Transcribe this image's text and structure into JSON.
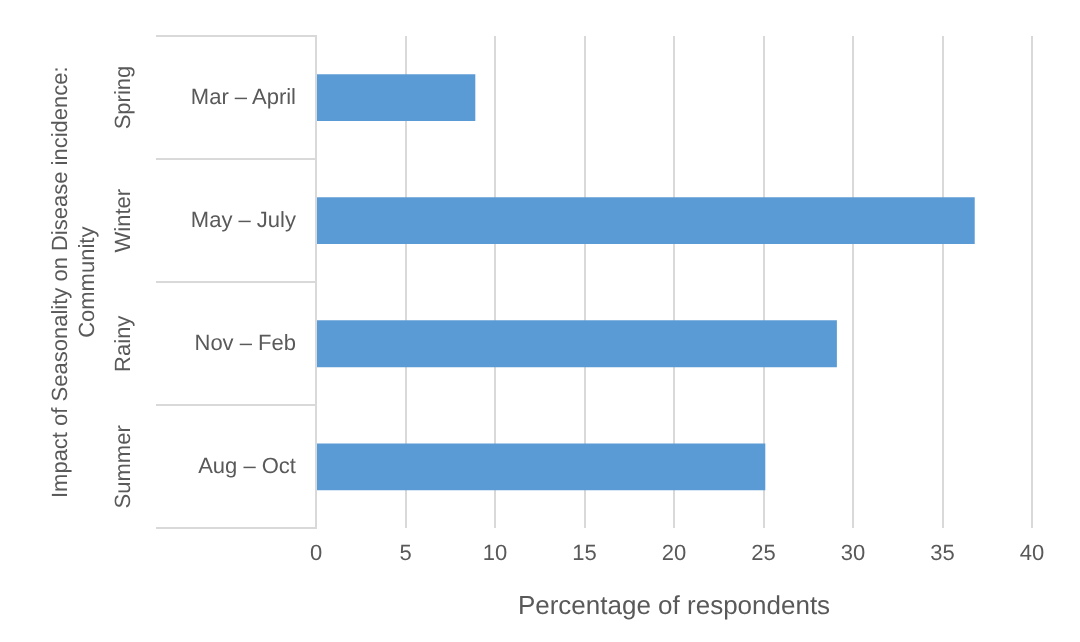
{
  "chart_data": {
    "type": "bar",
    "orientation": "horizontal",
    "ylabel": "Impact of Seasonality on Disease incidence:\nCommunity",
    "xlabel": "Percentage of respondents",
    "categories": [
      "Mar – April",
      "May – July",
      "Nov – Feb",
      "Aug – Oct"
    ],
    "values": [
      8.9,
      36.8,
      29.1,
      25.1
    ],
    "color": "#5b9bd5",
    "xlim": [
      0,
      40
    ],
    "xticks": [
      0,
      5,
      10,
      15,
      20,
      25,
      30,
      35,
      40
    ],
    "grid": "x",
    "legend": false,
    "annotations": [
      "Spring",
      "Winter",
      "Rainy",
      "Summer"
    ]
  }
}
